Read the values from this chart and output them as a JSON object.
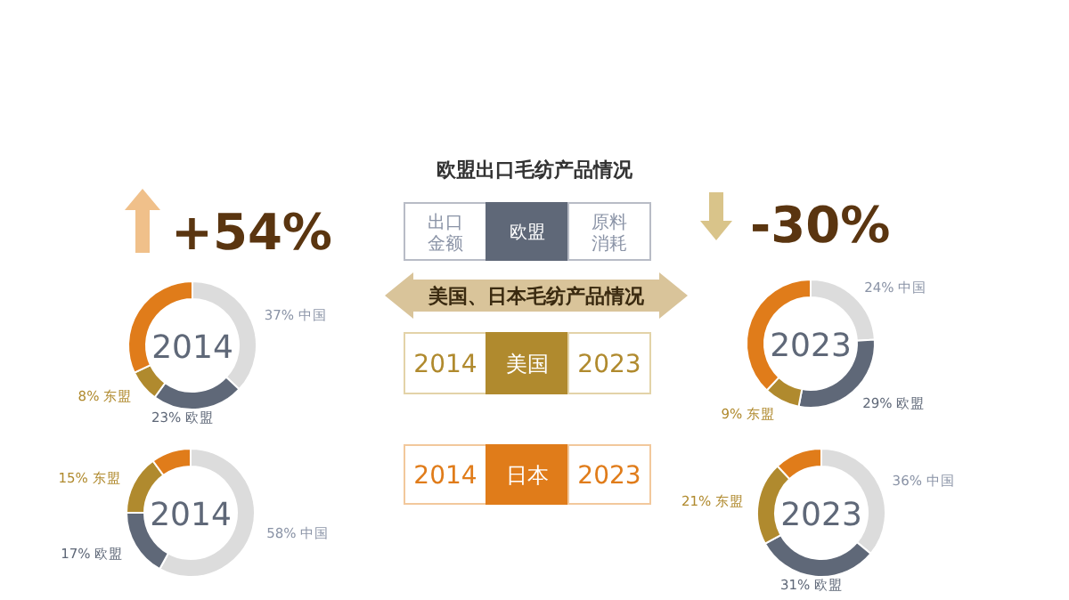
{
  "chart_data": [
    {
      "type": "donut",
      "title": "2014",
      "annotations": [
        "+54%"
      ],
      "categories": [
        "中国",
        "欧盟",
        "东盟",
        null
      ],
      "values": [
        37,
        23,
        8,
        32
      ],
      "value_labels": [
        "37%",
        "23%",
        "8%",
        null
      ],
      "colors": [
        "#dcdcdc",
        "#5f6878",
        "#b08a2e",
        "#e07c1a"
      ]
    },
    {
      "type": "other",
      "title": "欧盟出口毛纺产品情况",
      "annotations": [
        "出口金额",
        "欧盟",
        "原料消耗",
        "美国、日本毛纺产品情况",
        "2014",
        "美国",
        "2023",
        "2014",
        "日本",
        "2023"
      ]
    },
    {
      "type": "donut",
      "title": "2023",
      "annotations": [
        "-30%"
      ],
      "categories": [
        "中国",
        "欧盟",
        "东盟",
        null
      ],
      "values": [
        24,
        29,
        9,
        38
      ],
      "value_labels": [
        "24%",
        "29%",
        "9%",
        null
      ],
      "colors": [
        "#dcdcdc",
        "#5f6878",
        "#b08a2e",
        "#e07c1a"
      ]
    },
    {
      "type": "donut",
      "title": "2014",
      "categories": [
        "中国",
        "欧盟",
        "东盟",
        null
      ],
      "values": [
        58,
        17,
        15,
        10
      ],
      "value_labels": [
        "58%",
        "17%",
        "15%",
        null
      ],
      "colors": [
        "#dcdcdc",
        "#5f6878",
        "#b08a2e",
        "#e07c1a"
      ]
    },
    {
      "type": "donut",
      "title": "2023",
      "categories": [
        "中国",
        "欧盟",
        "东盟",
        null
      ],
      "values": [
        36,
        31,
        21,
        12
      ],
      "value_labels": [
        "36%",
        "31%",
        "21%",
        null
      ],
      "colors": [
        "#dcdcdc",
        "#5f6878",
        "#b08a2e",
        "#e07c1a"
      ]
    }
  ]
}
